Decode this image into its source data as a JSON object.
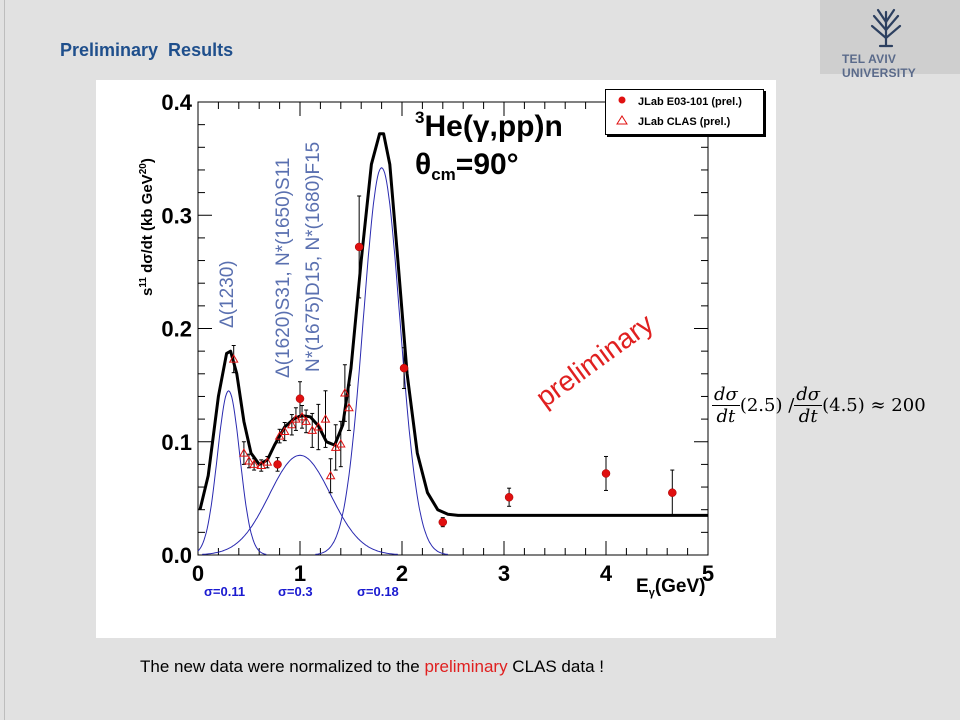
{
  "slide": {
    "title": "Preliminary  Results",
    "logo_text": "TEL AVIV UNIVERSITY",
    "footer_before": "The new data were normalized to the ",
    "footer_highlight": "preliminary",
    "footer_after": " CLAS data !",
    "formula": {
      "num1": "dσ",
      "den1": "dt",
      "arg1": "(2.5) /",
      "num2": "dσ",
      "den2": "dt",
      "arg2": "(4.5) ≈ 200"
    }
  },
  "chart_data": {
    "type": "scatter",
    "xlim": [
      0,
      5
    ],
    "ylim": [
      0,
      0.4
    ],
    "x_ticks": [
      "0",
      "1",
      "2",
      "3",
      "4",
      "5"
    ],
    "y_ticks": [
      "0.0",
      "0.1",
      "0.2",
      "0.3",
      "0.4"
    ],
    "xlabel_main": "E",
    "xlabel_sub": "γ",
    "xlabel_unit": "(GeV)",
    "ylabel_pre": "s",
    "ylabel_sup": "11",
    "ylabel_mid": " dσ/dt (kb GeV",
    "ylabel_sup2": "20",
    "ylabel_post": ")",
    "reaction_sup": "3",
    "reaction": "He(γ,pp)n",
    "theta_main": "θ",
    "theta_sub": "cm",
    "theta_val": "=90°",
    "resonance_labels": [
      "Δ(1230)",
      "Δ(1620)S31,  N*(1650)S11",
      "N*(1675)D15,  N*(1680)F15"
    ],
    "watermark": "preliminary",
    "sigma_labels": [
      "σ=0.11",
      "σ=0.3",
      "σ=0.18"
    ],
    "colors": {
      "fit": "#000000",
      "gauss": "#2a2ab0",
      "jlab": "#e01010",
      "clas": "#e01010",
      "resonance": "#5a70b0",
      "sigma": "#1a1ad0"
    },
    "series": [
      {
        "name": "JLab E03-101 (prel.)",
        "marker": "filled-circle",
        "points": [
          {
            "x": 0.78,
            "y": 0.08,
            "err": 0.006
          },
          {
            "x": 1.0,
            "y": 0.138,
            "err": 0.015
          },
          {
            "x": 1.58,
            "y": 0.272,
            "err": 0.045
          },
          {
            "x": 2.02,
            "y": 0.165,
            "err": 0.018
          },
          {
            "x": 2.4,
            "y": 0.029,
            "err": 0.004
          },
          {
            "x": 3.05,
            "y": 0.051,
            "err": 0.008
          },
          {
            "x": 4.0,
            "y": 0.072,
            "err": 0.015
          },
          {
            "x": 4.65,
            "y": 0.055,
            "err": 0.02
          }
        ]
      },
      {
        "name": "JLab CLAS (prel.)",
        "marker": "open-triangle",
        "points": [
          {
            "x": 0.35,
            "y": 0.173,
            "err": 0.012
          },
          {
            "x": 0.45,
            "y": 0.09,
            "err": 0.01
          },
          {
            "x": 0.5,
            "y": 0.083,
            "err": 0.006
          },
          {
            "x": 0.55,
            "y": 0.08,
            "err": 0.005
          },
          {
            "x": 0.62,
            "y": 0.079,
            "err": 0.005
          },
          {
            "x": 0.68,
            "y": 0.082,
            "err": 0.005
          },
          {
            "x": 0.8,
            "y": 0.105,
            "err": 0.006
          },
          {
            "x": 0.85,
            "y": 0.109,
            "err": 0.008
          },
          {
            "x": 0.92,
            "y": 0.115,
            "err": 0.009
          },
          {
            "x": 0.96,
            "y": 0.12,
            "err": 0.01
          },
          {
            "x": 1.02,
            "y": 0.122,
            "err": 0.01
          },
          {
            "x": 1.06,
            "y": 0.118,
            "err": 0.01
          },
          {
            "x": 1.12,
            "y": 0.11,
            "err": 0.015
          },
          {
            "x": 1.18,
            "y": 0.113,
            "err": 0.02
          },
          {
            "x": 1.25,
            "y": 0.12,
            "err": 0.025
          },
          {
            "x": 1.3,
            "y": 0.07,
            "err": 0.015
          },
          {
            "x": 1.35,
            "y": 0.095,
            "err": 0.02
          },
          {
            "x": 1.4,
            "y": 0.098,
            "err": 0.02
          },
          {
            "x": 1.44,
            "y": 0.143,
            "err": 0.025
          },
          {
            "x": 1.48,
            "y": 0.13,
            "err": 0.02
          }
        ]
      }
    ],
    "fit_curve": {
      "points": [
        [
          0.02,
          0.04
        ],
        [
          0.1,
          0.07
        ],
        [
          0.2,
          0.14
        ],
        [
          0.28,
          0.178
        ],
        [
          0.32,
          0.18
        ],
        [
          0.38,
          0.16
        ],
        [
          0.45,
          0.118
        ],
        [
          0.52,
          0.09
        ],
        [
          0.6,
          0.08
        ],
        [
          0.68,
          0.084
        ],
        [
          0.75,
          0.097
        ],
        [
          0.85,
          0.113
        ],
        [
          0.95,
          0.121
        ],
        [
          1.02,
          0.123
        ],
        [
          1.1,
          0.122
        ],
        [
          1.18,
          0.114
        ],
        [
          1.26,
          0.1
        ],
        [
          1.34,
          0.097
        ],
        [
          1.42,
          0.115
        ],
        [
          1.5,
          0.165
        ],
        [
          1.6,
          0.26
        ],
        [
          1.7,
          0.345
        ],
        [
          1.78,
          0.372
        ],
        [
          1.82,
          0.372
        ],
        [
          1.88,
          0.345
        ],
        [
          1.96,
          0.26
        ],
        [
          2.05,
          0.16
        ],
        [
          2.15,
          0.09
        ],
        [
          2.25,
          0.055
        ],
        [
          2.35,
          0.04
        ],
        [
          2.45,
          0.036
        ],
        [
          2.55,
          0.035
        ],
        [
          3.0,
          0.035
        ],
        [
          4.0,
          0.035
        ],
        [
          5.0,
          0.035
        ]
      ]
    },
    "gaussians": [
      {
        "mean": 0.3,
        "sigma": 0.11,
        "amp": 0.145
      },
      {
        "mean": 1.0,
        "sigma": 0.3,
        "amp": 0.088
      },
      {
        "mean": 1.8,
        "sigma": 0.18,
        "amp": 0.342
      }
    ]
  }
}
